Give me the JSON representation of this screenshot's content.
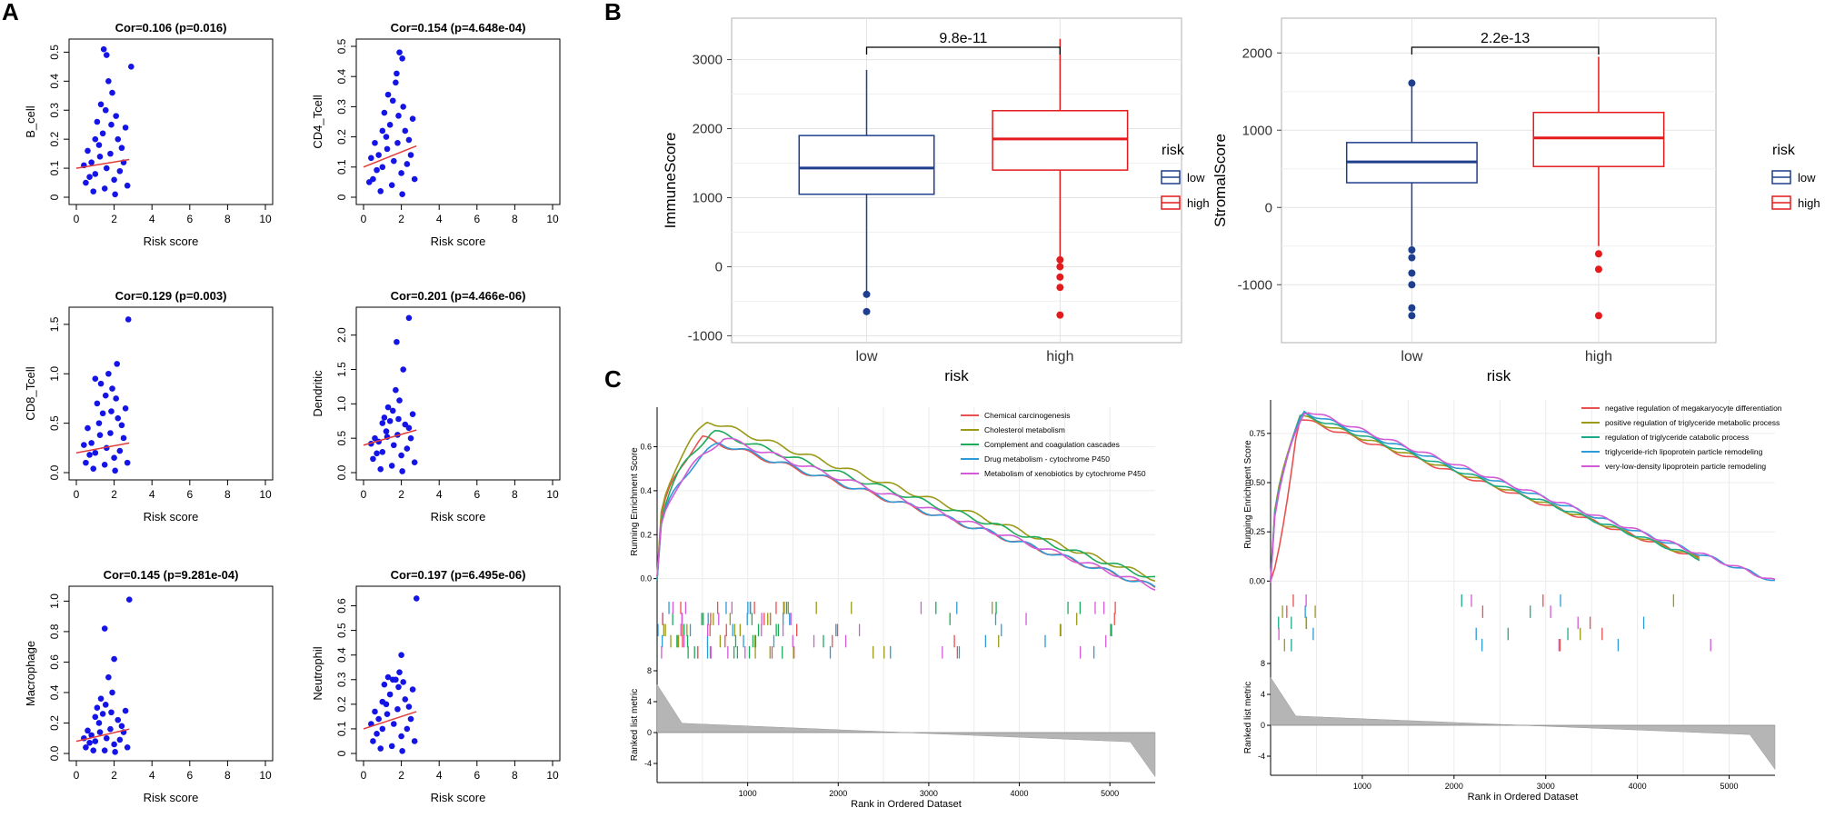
{
  "panel_labels": [
    "A",
    "B",
    "C"
  ],
  "chart_data": [
    {
      "type": "scatter",
      "panel": "A",
      "title": "Cor=0.106 (p=0.016)",
      "xlabel": "Risk score",
      "ylabel": "B_cell",
      "xlim": [
        0,
        10
      ],
      "ylim": [
        0,
        0.52
      ],
      "xticks": [
        0,
        2,
        4,
        6,
        8,
        10
      ],
      "yticks": [
        0,
        0.1,
        0.2,
        0.3,
        0.4,
        0.5
      ],
      "point_color": "#1414e6",
      "trend_color": "#e23a3a",
      "trend": [
        [
          0,
          0.1
        ],
        [
          2.8,
          0.13
        ]
      ],
      "points": [
        [
          0.5,
          0.05
        ],
        [
          0.8,
          0.12
        ],
        [
          1.0,
          0.08
        ],
        [
          1.2,
          0.18
        ],
        [
          1.4,
          0.22
        ],
        [
          1.5,
          0.03
        ],
        [
          1.6,
          0.1
        ],
        [
          1.8,
          0.15
        ],
        [
          2.0,
          0.06
        ],
        [
          2.2,
          0.2
        ],
        [
          0.6,
          0.16
        ],
        [
          1.1,
          0.26
        ],
        [
          1.3,
          0.32
        ],
        [
          1.7,
          0.4
        ],
        [
          1.45,
          0.51
        ],
        [
          1.6,
          0.49
        ],
        [
          2.1,
          0.28
        ],
        [
          2.5,
          0.12
        ],
        [
          2.7,
          0.04
        ],
        [
          0.9,
          0.02
        ],
        [
          1.9,
          0.36
        ],
        [
          2.3,
          0.09
        ],
        [
          2.4,
          0.17
        ],
        [
          0.4,
          0.11
        ],
        [
          1.25,
          0.14
        ],
        [
          2.6,
          0.24
        ],
        [
          1.55,
          0.3
        ],
        [
          2.05,
          0.01
        ],
        [
          2.9,
          0.45
        ],
        [
          1.0,
          0.2
        ],
        [
          0.7,
          0.07
        ],
        [
          1.85,
          0.25
        ]
      ]
    },
    {
      "type": "scatter",
      "panel": "A",
      "title": "Cor=0.154 (p=4.648e-04)",
      "xlabel": "Risk score",
      "ylabel": "CD4_Tcell",
      "xlim": [
        0,
        10
      ],
      "ylim": [
        0,
        0.5
      ],
      "xticks": [
        0,
        2,
        4,
        6,
        8,
        10
      ],
      "yticks": [
        0,
        0.1,
        0.2,
        0.3,
        0.4,
        0.5
      ],
      "point_color": "#1414e6",
      "trend_color": "#e23a3a",
      "trend": [
        [
          0,
          0.1
        ],
        [
          2.8,
          0.17
        ]
      ],
      "points": [
        [
          0.5,
          0.06
        ],
        [
          0.8,
          0.14
        ],
        [
          1.0,
          0.1
        ],
        [
          1.2,
          0.2
        ],
        [
          1.4,
          0.24
        ],
        [
          1.5,
          0.04
        ],
        [
          1.6,
          0.12
        ],
        [
          1.8,
          0.18
        ],
        [
          2.0,
          0.08
        ],
        [
          2.2,
          0.22
        ],
        [
          0.6,
          0.18
        ],
        [
          1.1,
          0.28
        ],
        [
          1.3,
          0.34
        ],
        [
          1.7,
          0.38
        ],
        [
          1.9,
          0.48
        ],
        [
          2.05,
          0.46
        ],
        [
          2.1,
          0.3
        ],
        [
          2.5,
          0.14
        ],
        [
          2.7,
          0.06
        ],
        [
          0.9,
          0.02
        ],
        [
          1.75,
          0.41
        ],
        [
          2.3,
          0.11
        ],
        [
          2.4,
          0.19
        ],
        [
          0.4,
          0.13
        ],
        [
          1.25,
          0.16
        ],
        [
          2.6,
          0.26
        ],
        [
          1.55,
          0.32
        ],
        [
          2.05,
          0.01
        ],
        [
          0.3,
          0.05
        ],
        [
          1.0,
          0.22
        ],
        [
          0.7,
          0.09
        ],
        [
          1.85,
          0.27
        ]
      ]
    },
    {
      "type": "scatter",
      "panel": "A",
      "title": "Cor=0.129 (p=0.003)",
      "xlabel": "Risk score",
      "ylabel": "CD8_Tcell",
      "xlim": [
        0,
        10
      ],
      "ylim": [
        0,
        1.6
      ],
      "xticks": [
        0,
        2,
        4,
        6,
        8,
        10
      ],
      "yticks": [
        0,
        0.5,
        1.0,
        1.5
      ],
      "ytick_labels": [
        "0.0",
        "0.5",
        "1.0",
        "1.5"
      ],
      "point_color": "#1414e6",
      "trend_color": "#e23a3a",
      "trend": [
        [
          0,
          0.2
        ],
        [
          2.8,
          0.3
        ]
      ],
      "points": [
        [
          0.5,
          0.1
        ],
        [
          0.8,
          0.3
        ],
        [
          1.0,
          0.2
        ],
        [
          1.2,
          0.5
        ],
        [
          1.4,
          0.6
        ],
        [
          1.5,
          0.08
        ],
        [
          1.6,
          0.25
        ],
        [
          1.8,
          0.4
        ],
        [
          2.0,
          0.15
        ],
        [
          2.2,
          0.55
        ],
        [
          0.6,
          0.45
        ],
        [
          1.1,
          0.7
        ],
        [
          1.3,
          0.9
        ],
        [
          1.7,
          1.0
        ],
        [
          2.15,
          1.1
        ],
        [
          2.1,
          0.75
        ],
        [
          2.5,
          0.35
        ],
        [
          2.7,
          0.1
        ],
        [
          0.9,
          0.04
        ],
        [
          1.9,
          0.85
        ],
        [
          2.3,
          0.22
        ],
        [
          2.4,
          0.48
        ],
        [
          0.4,
          0.28
        ],
        [
          1.25,
          0.38
        ],
        [
          2.6,
          0.65
        ],
        [
          1.55,
          0.78
        ],
        [
          2.05,
          0.02
        ],
        [
          2.75,
          1.55
        ],
        [
          1.0,
          0.95
        ],
        [
          0.7,
          0.18
        ],
        [
          1.85,
          0.62
        ]
      ]
    },
    {
      "type": "scatter",
      "panel": "A",
      "title": "Cor=0.201 (p=4.466e-06)",
      "xlabel": "Risk score",
      "ylabel": "Dendritic",
      "xlim": [
        0,
        10
      ],
      "ylim": [
        0,
        2.3
      ],
      "xticks": [
        0,
        2,
        4,
        6,
        8,
        10
      ],
      "yticks": [
        0,
        0.5,
        1.0,
        1.5,
        2.0
      ],
      "ytick_labels": [
        "0.0",
        "0.5",
        "1.0",
        "1.5",
        "2.0"
      ],
      "point_color": "#1414e6",
      "trend_color": "#e23a3a",
      "trend": [
        [
          0,
          0.4
        ],
        [
          2.8,
          0.62
        ]
      ],
      "points": [
        [
          0.5,
          0.2
        ],
        [
          0.8,
          0.45
        ],
        [
          1.0,
          0.3
        ],
        [
          1.2,
          0.6
        ],
        [
          1.4,
          0.75
        ],
        [
          1.5,
          0.1
        ],
        [
          1.6,
          0.4
        ],
        [
          1.8,
          0.55
        ],
        [
          2.0,
          0.25
        ],
        [
          2.2,
          0.7
        ],
        [
          0.6,
          0.5
        ],
        [
          1.1,
          0.8
        ],
        [
          1.3,
          0.95
        ],
        [
          1.7,
          1.2
        ],
        [
          1.75,
          1.9
        ],
        [
          2.1,
          1.5
        ],
        [
          2.5,
          0.5
        ],
        [
          2.7,
          0.15
        ],
        [
          0.9,
          0.05
        ],
        [
          1.9,
          1.05
        ],
        [
          2.3,
          0.35
        ],
        [
          2.4,
          0.65
        ],
        [
          0.4,
          0.42
        ],
        [
          1.25,
          0.52
        ],
        [
          2.6,
          0.85
        ],
        [
          1.55,
          0.9
        ],
        [
          2.05,
          0.02
        ],
        [
          2.4,
          2.25
        ],
        [
          1.0,
          0.72
        ],
        [
          0.7,
          0.28
        ],
        [
          1.85,
          0.78
        ]
      ]
    },
    {
      "type": "scatter",
      "panel": "A",
      "title": "Cor=0.145 (p=9.281e-04)",
      "xlabel": "Risk score",
      "ylabel": "Macrophage",
      "xlim": [
        0,
        10
      ],
      "ylim": [
        0,
        1.05
      ],
      "xticks": [
        0,
        2,
        4,
        6,
        8,
        10
      ],
      "yticks": [
        0,
        0.2,
        0.4,
        0.6,
        0.8,
        1.0
      ],
      "ytick_labels": [
        "0.0",
        "0.2",
        "0.4",
        "0.6",
        "0.8",
        "1.0"
      ],
      "point_color": "#1414e6",
      "trend_color": "#e23a3a",
      "trend": [
        [
          0,
          0.08
        ],
        [
          2.8,
          0.16
        ]
      ],
      "points": [
        [
          0.5,
          0.04
        ],
        [
          0.8,
          0.12
        ],
        [
          1.0,
          0.08
        ],
        [
          1.2,
          0.2
        ],
        [
          1.4,
          0.26
        ],
        [
          1.5,
          0.02
        ],
        [
          1.6,
          0.1
        ],
        [
          1.8,
          0.16
        ],
        [
          2.0,
          0.06
        ],
        [
          2.2,
          0.22
        ],
        [
          0.6,
          0.15
        ],
        [
          1.1,
          0.3
        ],
        [
          1.3,
          0.36
        ],
        [
          1.7,
          0.5
        ],
        [
          1.5,
          0.82
        ],
        [
          2.0,
          0.62
        ],
        [
          2.5,
          0.14
        ],
        [
          2.7,
          0.04
        ],
        [
          0.9,
          0.02
        ],
        [
          1.9,
          0.4
        ],
        [
          2.3,
          0.09
        ],
        [
          2.4,
          0.18
        ],
        [
          0.4,
          0.1
        ],
        [
          1.25,
          0.14
        ],
        [
          2.6,
          0.28
        ],
        [
          1.55,
          0.32
        ],
        [
          2.05,
          0.01
        ],
        [
          2.8,
          1.01
        ],
        [
          1.0,
          0.24
        ],
        [
          0.7,
          0.07
        ],
        [
          1.85,
          0.27
        ]
      ]
    },
    {
      "type": "scatter",
      "panel": "A",
      "title": "Cor=0.197 (p=6.495e-06)",
      "xlabel": "Risk score",
      "ylabel": "Neutrophil",
      "xlim": [
        0,
        10
      ],
      "ylim": [
        0,
        0.65
      ],
      "xticks": [
        0,
        2,
        4,
        6,
        8,
        10
      ],
      "yticks": [
        0,
        0.1,
        0.2,
        0.3,
        0.4,
        0.5,
        0.6
      ],
      "point_color": "#1414e6",
      "trend_color": "#e23a3a",
      "trend": [
        [
          0,
          0.1
        ],
        [
          2.8,
          0.17
        ]
      ],
      "points": [
        [
          0.5,
          0.05
        ],
        [
          0.8,
          0.14
        ],
        [
          1.0,
          0.1
        ],
        [
          1.2,
          0.2
        ],
        [
          1.4,
          0.24
        ],
        [
          1.5,
          0.03
        ],
        [
          1.6,
          0.12
        ],
        [
          1.8,
          0.18
        ],
        [
          2.0,
          0.07
        ],
        [
          2.2,
          0.22
        ],
        [
          0.6,
          0.17
        ],
        [
          1.1,
          0.28
        ],
        [
          1.3,
          0.31
        ],
        [
          1.7,
          0.3
        ],
        [
          2.0,
          0.4
        ],
        [
          2.1,
          0.29
        ],
        [
          2.5,
          0.14
        ],
        [
          2.7,
          0.05
        ],
        [
          0.9,
          0.02
        ],
        [
          1.9,
          0.33
        ],
        [
          2.3,
          0.1
        ],
        [
          2.4,
          0.19
        ],
        [
          0.4,
          0.12
        ],
        [
          1.25,
          0.16
        ],
        [
          2.6,
          0.26
        ],
        [
          1.55,
          0.3
        ],
        [
          2.05,
          0.01
        ],
        [
          2.8,
          0.63
        ],
        [
          1.0,
          0.21
        ],
        [
          0.7,
          0.08
        ],
        [
          1.85,
          0.27
        ]
      ]
    },
    {
      "type": "box",
      "panel": "B",
      "ylabel": "ImmuneScore",
      "xlabel": "risk",
      "categories": [
        "low",
        "high"
      ],
      "ylim": [
        -1100,
        3600
      ],
      "yticks": [
        -1000,
        0,
        1000,
        2000,
        3000
      ],
      "significance": "9.8e-11",
      "legend_title": "risk",
      "legend": [
        "low",
        "high"
      ],
      "colors": [
        "#1f3e8c",
        "#e41a1c"
      ],
      "boxes": [
        {
          "name": "low",
          "min": -400,
          "q1": 1050,
          "median": 1430,
          "q3": 1900,
          "max": 2850,
          "outliers": [
            -400,
            -650
          ]
        },
        {
          "name": "high",
          "min": 150,
          "q1": 1400,
          "median": 1850,
          "q3": 2260,
          "max": 3300,
          "outliers": [
            100,
            0,
            -150,
            -300,
            -700
          ]
        }
      ]
    },
    {
      "type": "box",
      "panel": "B",
      "ylabel": "StromalScore",
      "xlabel": "risk",
      "categories": [
        "low",
        "high"
      ],
      "ylim": [
        -1750,
        2450
      ],
      "yticks": [
        -1000,
        0,
        1000,
        2000
      ],
      "significance": "2.2e-13",
      "legend_title": "risk",
      "legend": [
        "low",
        "high"
      ],
      "colors": [
        "#1f3e8c",
        "#e41a1c"
      ],
      "boxes": [
        {
          "name": "low",
          "min": -500,
          "q1": 320,
          "median": 590,
          "q3": 840,
          "max": 1600,
          "outliers": [
            1610,
            -550,
            -650,
            -850,
            -1000,
            -1300,
            -1400
          ]
        },
        {
          "name": "high",
          "min": -500,
          "q1": 530,
          "median": 900,
          "q3": 1230,
          "max": 1950,
          "outliers": [
            -600,
            -800,
            -1400
          ]
        }
      ]
    },
    {
      "type": "gsea",
      "panel": "C",
      "ylabel_top": "Running Enrichment Score",
      "ylabel_bottom": "Ranked list metric",
      "xlabel": "Rank in Ordered Dataset",
      "xlim": [
        0,
        5500
      ],
      "xticks": [
        1000,
        2000,
        3000,
        4000,
        5000
      ],
      "es_ylim": [
        -0.08,
        0.78
      ],
      "es_yticks": [
        0.0,
        0.2,
        0.4,
        0.6
      ],
      "es_ytick_labels": [
        "0.0",
        "0.2",
        "0.4",
        "0.6"
      ],
      "metric_yticks": [
        8,
        4,
        0,
        -4
      ],
      "metric_ylim": [
        -6,
        8
      ],
      "series": [
        {
          "name": "Chemical carcinogenesis",
          "color": "#e9504f"
        },
        {
          "name": "Cholesterol metabolism",
          "color": "#9a9a18"
        },
        {
          "name": "Complement and coagulation cascades",
          "color": "#1daa5a"
        },
        {
          "name": "Drug metabolism - cytochrome P450",
          "color": "#2e9bd6"
        },
        {
          "name": "Metabolism of xenobiotics by cytochrome P450",
          "color": "#d35ad6"
        }
      ]
    },
    {
      "type": "gsea",
      "panel": "C",
      "ylabel_top": "Running Enrichment Score",
      "ylabel_bottom": "Ranked list metric",
      "xlabel": "Rank in Ordered Dataset",
      "xlim": [
        0,
        5500
      ],
      "xticks": [
        1000,
        2000,
        3000,
        4000,
        5000
      ],
      "es_ylim": [
        -0.04,
        0.92
      ],
      "es_yticks": [
        0.0,
        0.25,
        0.5,
        0.75
      ],
      "es_ytick_labels": [
        "0.00",
        "0.25",
        "0.50",
        "0.75"
      ],
      "metric_yticks": [
        8,
        4,
        0,
        -4
      ],
      "metric_ylim": [
        -6,
        8
      ],
      "series": [
        {
          "name": "negative regulation of megakaryocyte differentiation",
          "color": "#e9504f"
        },
        {
          "name": "positive regulation of triglyceride metabolic process",
          "color": "#9a9a18"
        },
        {
          "name": "regulation of triglyceride catabolic process",
          "color": "#1daa8a"
        },
        {
          "name": "triglyceride-rich lipoprotein particle remodeling",
          "color": "#2e9bd6"
        },
        {
          "name": "very-low-density lipoprotein particle remodeling",
          "color": "#d35ad6"
        }
      ]
    }
  ]
}
